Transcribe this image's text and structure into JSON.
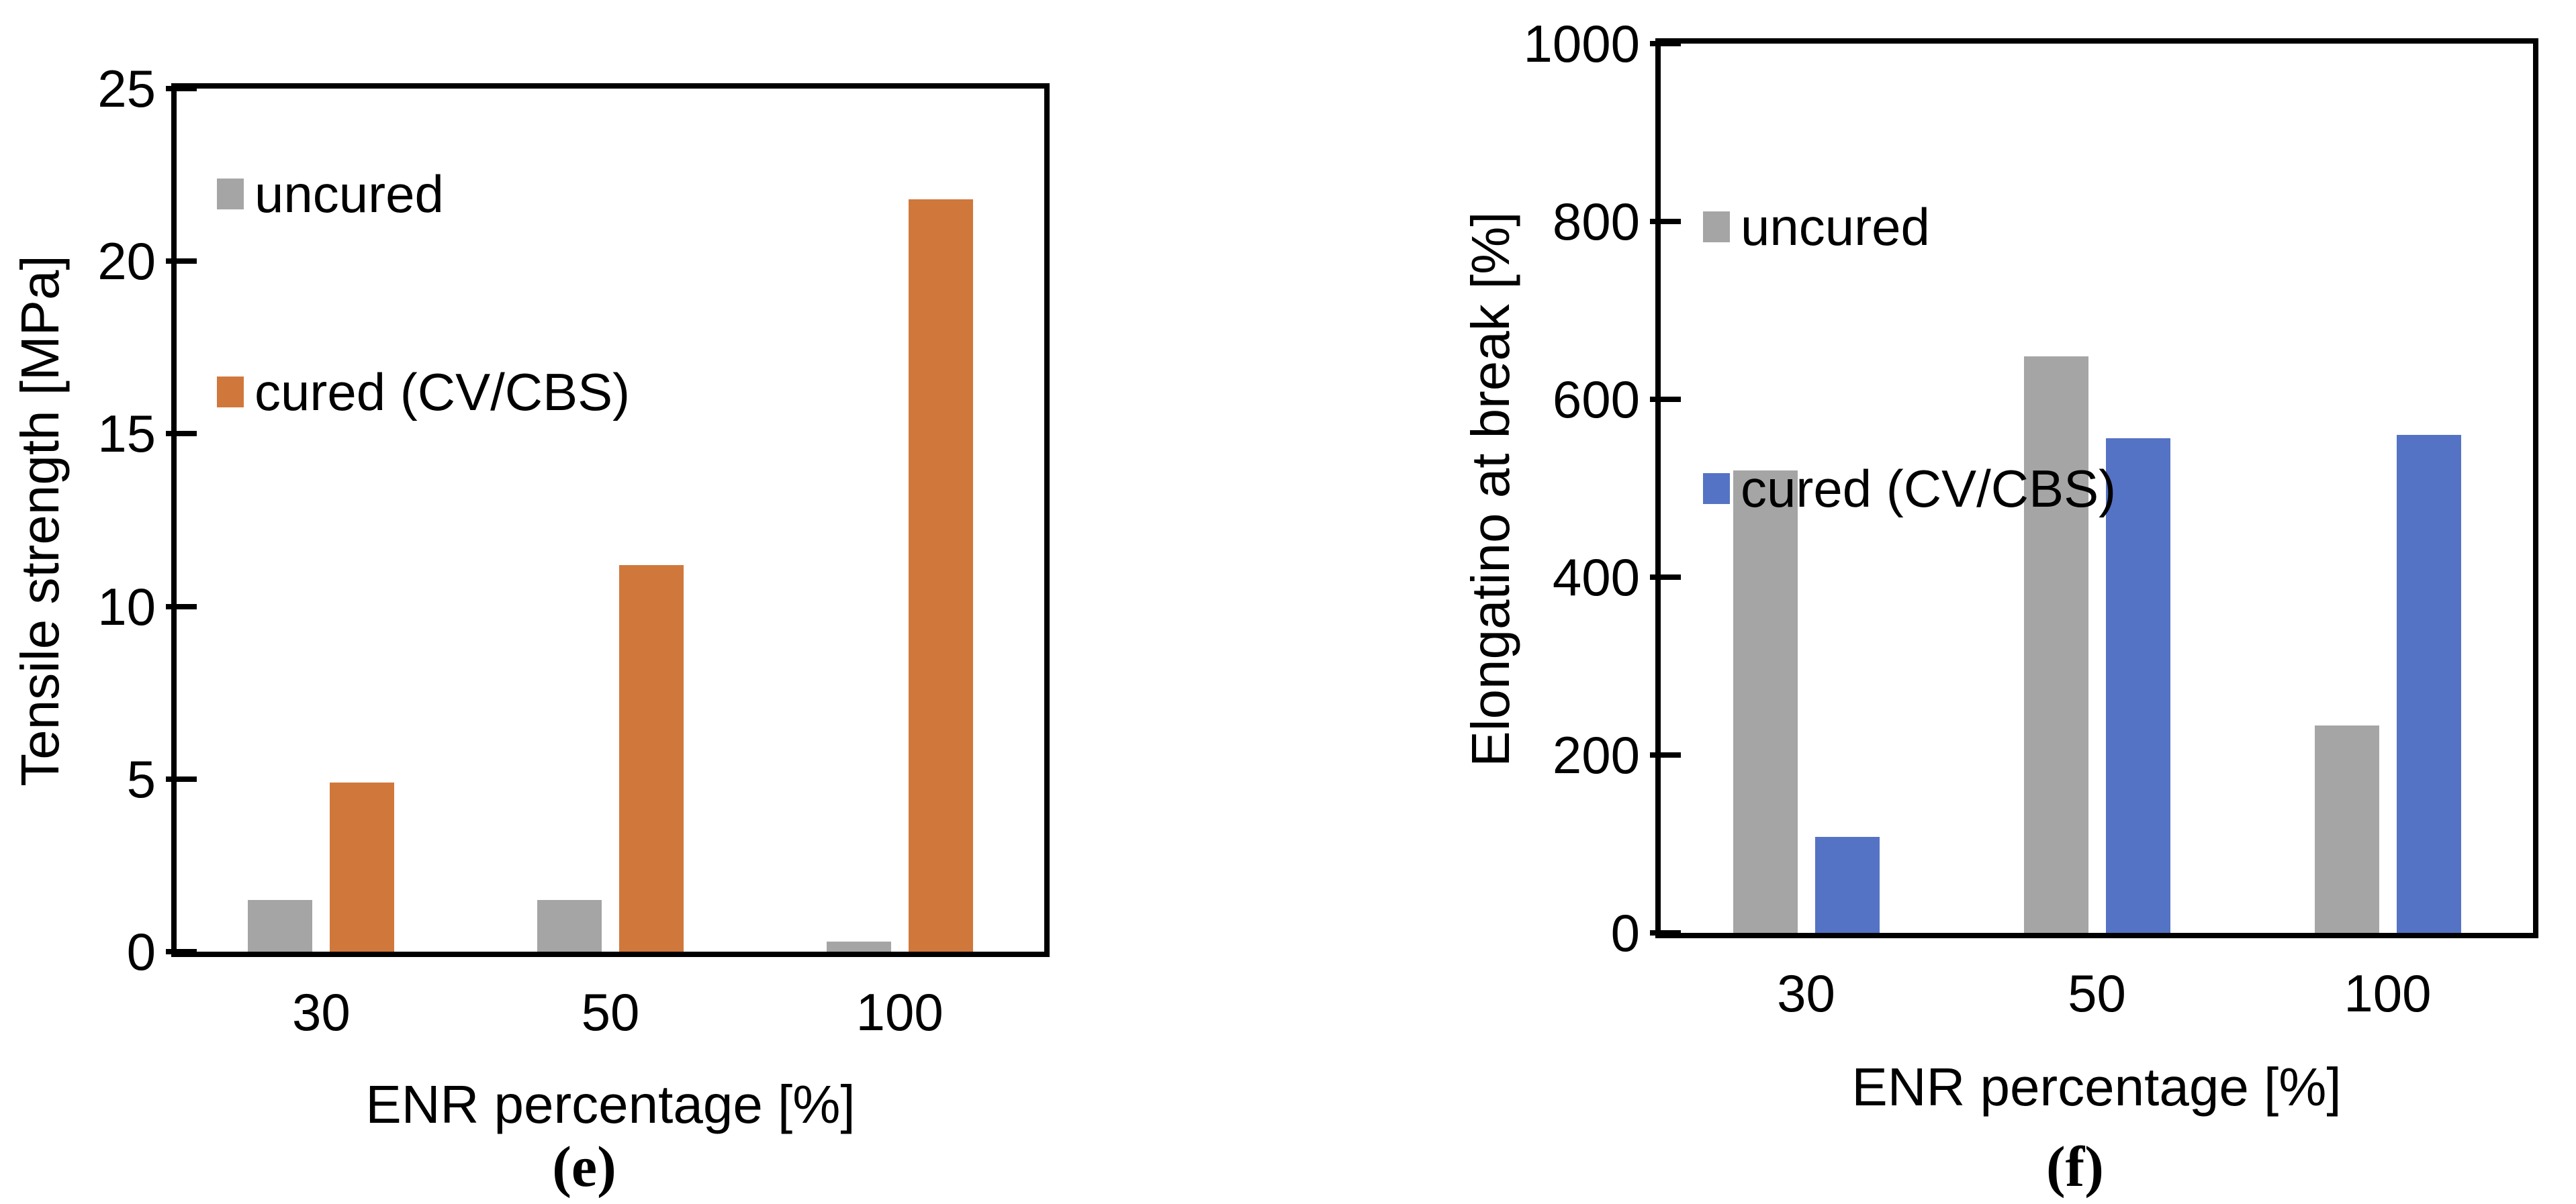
{
  "chart_data": [
    {
      "panel": "e",
      "type": "bar",
      "caption": "(e)",
      "xlabel": "ENR percentage [%]",
      "ylabel": "Tensile strength [MPa]",
      "categories": [
        "30",
        "50",
        "100"
      ],
      "series": [
        {
          "name": "uncured",
          "color": "#A5A5A5",
          "values": [
            1.5,
            1.5,
            0.3
          ]
        },
        {
          "name": "cured (CV/CBS)",
          "color": "#D0783C",
          "values": [
            4.9,
            11.2,
            21.8
          ]
        }
      ],
      "ylim": [
        0,
        25
      ],
      "ytick_step": 5,
      "ytick_labels": [
        "0",
        "5",
        "10",
        "15",
        "20",
        "25"
      ],
      "grid": false,
      "legend_position": "top-left"
    },
    {
      "panel": "f",
      "type": "bar",
      "caption": "(f)",
      "xlabel": "ENR percentage [%]",
      "ylabel": "Elongatino at break [%]",
      "categories": [
        "30",
        "50",
        "100"
      ],
      "series": [
        {
          "name": "uncured",
          "color": "#A5A5A5",
          "values": [
            520,
            648,
            233
          ]
        },
        {
          "name": "cured (CV/CBS)",
          "color": "#5573C4",
          "values": [
            108,
            556,
            560
          ]
        }
      ],
      "ylim": [
        0,
        1000
      ],
      "ytick_step": 200,
      "ytick_labels": [
        "0",
        "200",
        "400",
        "600",
        "800",
        "1000"
      ],
      "grid": false,
      "legend_position": "top-left"
    }
  ],
  "colors": {
    "uncured": "#A5A5A5",
    "cured_e": "#D0783C",
    "cured_f": "#5573C4",
    "axis": "#000000",
    "background": "#FFFFFF"
  }
}
